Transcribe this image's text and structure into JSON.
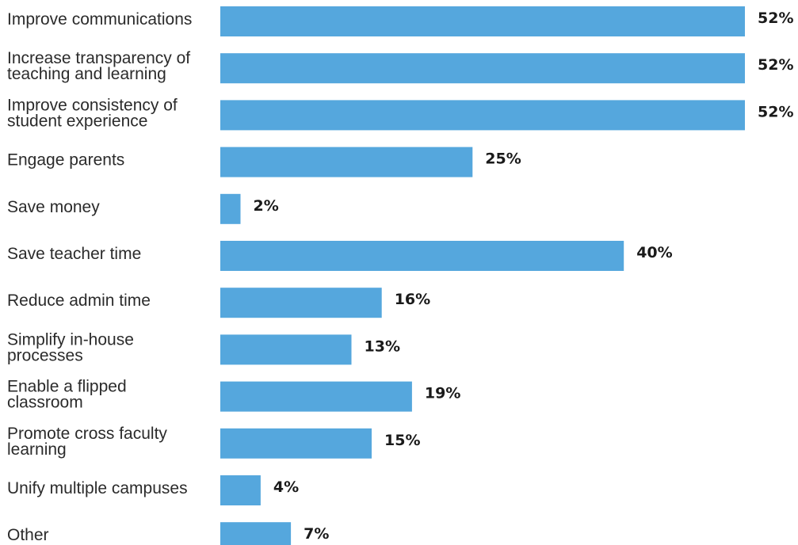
{
  "chart_data": {
    "type": "bar",
    "orientation": "horizontal",
    "categories": [
      [
        "Improve communications"
      ],
      [
        "Increase transparency of",
        "teaching and learning"
      ],
      [
        "Improve consistency of",
        "student experience"
      ],
      [
        "Engage parents"
      ],
      [
        "Save money"
      ],
      [
        "Save teacher time"
      ],
      [
        "Reduce admin time"
      ],
      [
        "Simplify in-house",
        "processes"
      ],
      [
        "Enable a flipped",
        "classroom"
      ],
      [
        "Promote cross faculty",
        "learning"
      ],
      [
        "Unify multiple campuses"
      ],
      [
        "Other"
      ]
    ],
    "values": [
      52,
      52,
      52,
      25,
      2,
      40,
      16,
      13,
      19,
      15,
      4,
      7
    ],
    "value_labels": [
      "52%",
      "52%",
      "52%",
      "25%",
      "2%",
      "40%",
      "16%",
      "13%",
      "19%",
      "15%",
      "4%",
      "7%"
    ],
    "unit": "%",
    "bar_color": "#55a7dd",
    "grid": false,
    "legend": "none"
  }
}
